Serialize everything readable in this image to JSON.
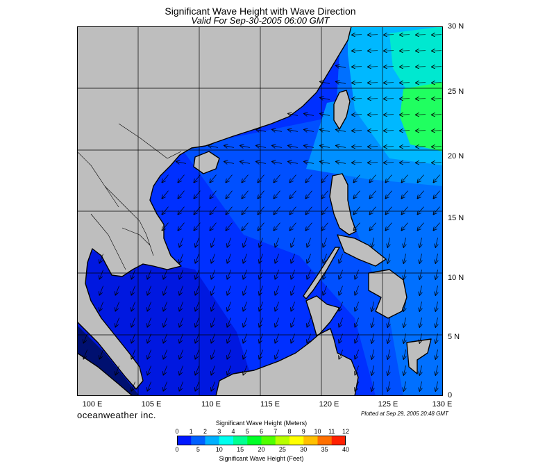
{
  "header": {
    "title": "Significant Wave Height with Wave Direction",
    "subtitle": "Valid For Sep-30-2005 06:00 GMT"
  },
  "map": {
    "region": "South China Sea / Western Pacific",
    "lon_range": [
      100,
      130
    ],
    "lat_range": [
      0,
      30
    ],
    "lat_labels": [
      "30 N",
      "25 N",
      "20 N",
      "15 N",
      "10 N",
      "5 N",
      "0"
    ],
    "lon_labels": [
      "100 E",
      "105 E",
      "110 E",
      "115 E",
      "120 E",
      "125 E",
      "130 E"
    ],
    "grid": true,
    "arrow_field": "wave-direction",
    "land_color": "#bebebe",
    "coast_color": "#000000"
  },
  "footer": {
    "brand": "oceanweather inc.",
    "plotted": "Plotted at Sep 29, 2005 20:48 GMT"
  },
  "colorbar": {
    "title_top": "Significant Wave Height (Meters)",
    "title_bottom": "Significant Wave Height (Feet)",
    "meters_ticks": [
      "0",
      "1",
      "2",
      "3",
      "4",
      "5",
      "6",
      "7",
      "8",
      "9",
      "10",
      "11",
      "12"
    ],
    "feet_ticks": [
      "0",
      "5",
      "10",
      "15",
      "20",
      "25",
      "30",
      "35",
      "40"
    ],
    "colors": [
      "#0018ff",
      "#0060ff",
      "#00b0ff",
      "#00ffee",
      "#00ff90",
      "#00ff28",
      "#50ff00",
      "#b8ff00",
      "#ffff00",
      "#ffc000",
      "#ff7000",
      "#ff2000"
    ]
  }
}
